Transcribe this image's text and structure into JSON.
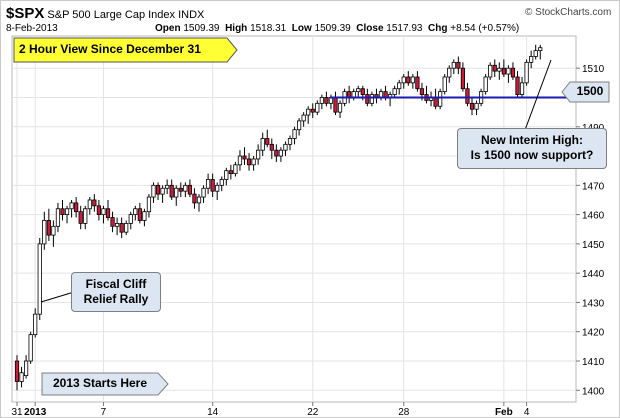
{
  "header": {
    "symbol": "$SPX",
    "name": "S&P 500 Large Cap Index",
    "exchange": "INDX",
    "date": "8-Feb-2013",
    "open_label": "Open",
    "open_value": "1509.39",
    "high_label": "High",
    "high_value": "1518.31",
    "low_label": "Low",
    "low_value": "1509.39",
    "close_label": "Close",
    "close_value": "1517.93",
    "chg_label": "Chg",
    "chg_value": "+8.54 (+0.57%)",
    "copyright": "© StockCharts.com"
  },
  "annotations": {
    "view": "2 Hour View Since December 31",
    "fiscal_line1": "Fiscal Cliff",
    "fiscal_line2": "Relief Rally",
    "starts": "2013 Starts Here",
    "interim_line1": "New Interim High:",
    "interim_line2": "Is 1500 now support?",
    "level": "1500"
  },
  "colors": {
    "up": "#ffffff",
    "down": "#cc1b3a",
    "wick": "#000000",
    "support": "#1a1ab0",
    "callout_fill": "#dce6f2",
    "label_fill": "#ffff33",
    "grid": "#e3e3e3"
  },
  "chart_data": {
    "type": "candlestick",
    "interval": "2 hour",
    "ylim": [
      1396,
      1521
    ],
    "y_ticks": [
      1400,
      1410,
      1420,
      1430,
      1440,
      1450,
      1460,
      1470,
      1480,
      1490,
      1500,
      1510
    ],
    "x_tick_labels": [
      {
        "label": "31",
        "bar": 0
      },
      {
        "label": "2013",
        "bar": 4
      },
      {
        "label": "7",
        "bar": 19
      },
      {
        "label": "14",
        "bar": 43
      },
      {
        "label": "22",
        "bar": 65
      },
      {
        "label": "28",
        "bar": 85
      },
      {
        "label": "Feb",
        "bar": 107
      },
      {
        "label": "4",
        "bar": 112
      }
    ],
    "support_level": 1500,
    "ohlc": [
      [
        1410,
        1412,
        1400,
        1403
      ],
      [
        1403,
        1408,
        1401,
        1406
      ],
      [
        1405,
        1412,
        1404,
        1410
      ],
      [
        1410,
        1420,
        1409,
        1419
      ],
      [
        1419,
        1428,
        1418,
        1426
      ],
      [
        1426,
        1452,
        1424,
        1450
      ],
      [
        1450,
        1461,
        1448,
        1458
      ],
      [
        1458,
        1462,
        1451,
        1453
      ],
      [
        1453,
        1458,
        1449,
        1456
      ],
      [
        1456,
        1464,
        1454,
        1462
      ],
      [
        1462,
        1465,
        1458,
        1460
      ],
      [
        1460,
        1463,
        1457,
        1462
      ],
      [
        1462,
        1465,
        1459,
        1464
      ],
      [
        1464,
        1466,
        1459,
        1461
      ],
      [
        1461,
        1463,
        1455,
        1457
      ],
      [
        1457,
        1463,
        1455,
        1462
      ],
      [
        1462,
        1466,
        1460,
        1465
      ],
      [
        1465,
        1467,
        1461,
        1463
      ],
      [
        1463,
        1465,
        1458,
        1460
      ],
      [
        1460,
        1463,
        1457,
        1462
      ],
      [
        1462,
        1465,
        1458,
        1459
      ],
      [
        1459,
        1461,
        1454,
        1456
      ],
      [
        1456,
        1459,
        1453,
        1457
      ],
      [
        1457,
        1459,
        1452,
        1454
      ],
      [
        1454,
        1458,
        1453,
        1457
      ],
      [
        1457,
        1461,
        1455,
        1460
      ],
      [
        1460,
        1463,
        1458,
        1462
      ],
      [
        1462,
        1464,
        1457,
        1458
      ],
      [
        1458,
        1462,
        1456,
        1461
      ],
      [
        1461,
        1467,
        1459,
        1466
      ],
      [
        1466,
        1471,
        1464,
        1470
      ],
      [
        1470,
        1471,
        1465,
        1467
      ],
      [
        1467,
        1470,
        1464,
        1469
      ],
      [
        1469,
        1472,
        1467,
        1470
      ],
      [
        1470,
        1472,
        1465,
        1466
      ],
      [
        1466,
        1470,
        1463,
        1469
      ],
      [
        1469,
        1471,
        1466,
        1468
      ],
      [
        1468,
        1471,
        1466,
        1470
      ],
      [
        1470,
        1472,
        1466,
        1467
      ],
      [
        1467,
        1469,
        1462,
        1464
      ],
      [
        1464,
        1467,
        1461,
        1466
      ],
      [
        1466,
        1470,
        1464,
        1469
      ],
      [
        1469,
        1474,
        1467,
        1472
      ],
      [
        1472,
        1474,
        1466,
        1468
      ],
      [
        1468,
        1471,
        1465,
        1470
      ],
      [
        1470,
        1473,
        1468,
        1472
      ],
      [
        1472,
        1476,
        1470,
        1475
      ],
      [
        1475,
        1477,
        1472,
        1474
      ],
      [
        1474,
        1478,
        1473,
        1477
      ],
      [
        1477,
        1482,
        1475,
        1480
      ],
      [
        1480,
        1483,
        1477,
        1479
      ],
      [
        1479,
        1481,
        1475,
        1477
      ],
      [
        1477,
        1480,
        1475,
        1479
      ],
      [
        1479,
        1484,
        1477,
        1482
      ],
      [
        1482,
        1488,
        1480,
        1486
      ],
      [
        1486,
        1489,
        1483,
        1484
      ],
      [
        1484,
        1486,
        1479,
        1482
      ],
      [
        1482,
        1484,
        1478,
        1480
      ],
      [
        1480,
        1483,
        1478,
        1482
      ],
      [
        1482,
        1485,
        1480,
        1484
      ],
      [
        1484,
        1487,
        1482,
        1486
      ],
      [
        1486,
        1490,
        1484,
        1489
      ],
      [
        1489,
        1493,
        1487,
        1492
      ],
      [
        1492,
        1495,
        1490,
        1494
      ],
      [
        1494,
        1497,
        1491,
        1496
      ],
      [
        1496,
        1498,
        1493,
        1495
      ],
      [
        1495,
        1499,
        1494,
        1498
      ],
      [
        1498,
        1501,
        1496,
        1500
      ],
      [
        1500,
        1502,
        1497,
        1498
      ],
      [
        1498,
        1501,
        1496,
        1500
      ],
      [
        1500,
        1502,
        1494,
        1495
      ],
      [
        1495,
        1499,
        1493,
        1498
      ],
      [
        1498,
        1503,
        1497,
        1502
      ],
      [
        1502,
        1504,
        1498,
        1500
      ],
      [
        1500,
        1503,
        1499,
        1502
      ],
      [
        1502,
        1504,
        1500,
        1503
      ],
      [
        1503,
        1504,
        1499,
        1501
      ],
      [
        1501,
        1503,
        1497,
        1498
      ],
      [
        1498,
        1502,
        1497,
        1501
      ],
      [
        1501,
        1503,
        1498,
        1500
      ],
      [
        1500,
        1503,
        1499,
        1502
      ],
      [
        1502,
        1504,
        1499,
        1500
      ],
      [
        1500,
        1502,
        1497,
        1501
      ],
      [
        1501,
        1504,
        1500,
        1503
      ],
      [
        1503,
        1506,
        1501,
        1505
      ],
      [
        1505,
        1508,
        1503,
        1507
      ],
      [
        1507,
        1509,
        1504,
        1505
      ],
      [
        1505,
        1508,
        1503,
        1507
      ],
      [
        1507,
        1509,
        1502,
        1503
      ],
      [
        1503,
        1505,
        1499,
        1501
      ],
      [
        1501,
        1504,
        1498,
        1499
      ],
      [
        1499,
        1502,
        1497,
        1500
      ],
      [
        1500,
        1503,
        1496,
        1497
      ],
      [
        1497,
        1503,
        1496,
        1502
      ],
      [
        1502,
        1508,
        1501,
        1507
      ],
      [
        1507,
        1511,
        1505,
        1510
      ],
      [
        1510,
        1513,
        1508,
        1512
      ],
      [
        1512,
        1514,
        1508,
        1510
      ],
      [
        1510,
        1512,
        1502,
        1503
      ],
      [
        1503,
        1505,
        1497,
        1498
      ],
      [
        1498,
        1500,
        1494,
        1496
      ],
      [
        1496,
        1499,
        1494,
        1498
      ],
      [
        1498,
        1503,
        1497,
        1502
      ],
      [
        1502,
        1508,
        1501,
        1507
      ],
      [
        1507,
        1512,
        1506,
        1511
      ],
      [
        1511,
        1513,
        1507,
        1509
      ],
      [
        1509,
        1512,
        1506,
        1510
      ],
      [
        1510,
        1513,
        1507,
        1508
      ],
      [
        1508,
        1511,
        1505,
        1510
      ],
      [
        1510,
        1512,
        1506,
        1507
      ],
      [
        1507,
        1509,
        1500,
        1501
      ],
      [
        1501,
        1507,
        1500,
        1505
      ],
      [
        1505,
        1513,
        1504,
        1512
      ],
      [
        1512,
        1516,
        1510,
        1514
      ],
      [
        1514,
        1518,
        1513,
        1516
      ],
      [
        1516,
        1518,
        1513,
        1517
      ]
    ]
  }
}
